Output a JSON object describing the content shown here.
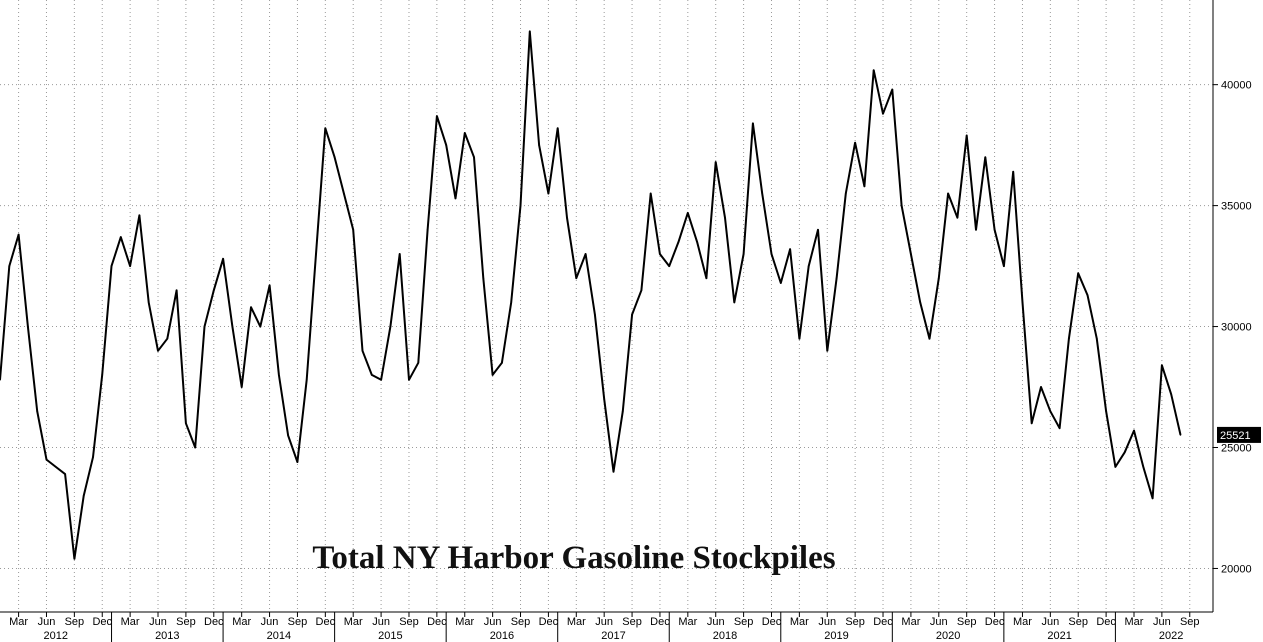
{
  "chart_data": {
    "type": "line",
    "title": "Total NY Harbor Gasoline Stockpiles",
    "xlabel": "",
    "ylabel": "",
    "ylim": [
      18200,
      43500
    ],
    "yticks": [
      20000,
      25000,
      30000,
      35000,
      40000
    ],
    "grid": true,
    "legend": "none",
    "last_value": 25521,
    "last_value_label": "25521",
    "colors": {
      "line": "#000000",
      "grid": "#9a9a9a",
      "last_label_bg": "#000000"
    },
    "x_start": "2012-01",
    "x_end": "2022-10",
    "month_ticks": [
      "Mar",
      "Jun",
      "Sep",
      "Dec"
    ],
    "years": [
      "2012",
      "2013",
      "2014",
      "2015",
      "2016",
      "2017",
      "2018",
      "2019",
      "2020",
      "2021",
      "2022"
    ],
    "series": [
      {
        "values": [
          [
            "2012-01-01",
            27800
          ],
          [
            "2012-02-01",
            32500
          ],
          [
            "2012-03-01",
            33800
          ],
          [
            "2012-04-01",
            30000
          ],
          [
            "2012-05-01",
            26500
          ],
          [
            "2012-06-01",
            24500
          ],
          [
            "2012-07-01",
            24200
          ],
          [
            "2012-08-01",
            23900
          ],
          [
            "2012-09-01",
            20400
          ],
          [
            "2012-10-01",
            23000
          ],
          [
            "2012-11-01",
            24600
          ],
          [
            "2012-12-01",
            28000
          ],
          [
            "2013-01-01",
            32500
          ],
          [
            "2013-02-01",
            33700
          ],
          [
            "2013-03-01",
            32500
          ],
          [
            "2013-04-01",
            34600
          ],
          [
            "2013-05-01",
            31000
          ],
          [
            "2013-06-01",
            29000
          ],
          [
            "2013-07-01",
            29500
          ],
          [
            "2013-08-01",
            31500
          ],
          [
            "2013-09-01",
            26000
          ],
          [
            "2013-10-01",
            25000
          ],
          [
            "2013-11-01",
            30000
          ],
          [
            "2013-12-01",
            31500
          ],
          [
            "2014-01-01",
            32800
          ],
          [
            "2014-02-01",
            30000
          ],
          [
            "2014-03-01",
            27500
          ],
          [
            "2014-04-01",
            30800
          ],
          [
            "2014-05-01",
            30000
          ],
          [
            "2014-06-01",
            31700
          ],
          [
            "2014-07-01",
            28000
          ],
          [
            "2014-08-01",
            25500
          ],
          [
            "2014-09-01",
            24400
          ],
          [
            "2014-10-01",
            27800
          ],
          [
            "2014-11-01",
            33000
          ],
          [
            "2014-12-01",
            38200
          ],
          [
            "2015-01-01",
            37000
          ],
          [
            "2015-02-01",
            35500
          ],
          [
            "2015-03-01",
            34000
          ],
          [
            "2015-04-01",
            29000
          ],
          [
            "2015-05-01",
            28000
          ],
          [
            "2015-06-01",
            27800
          ],
          [
            "2015-07-01",
            30000
          ],
          [
            "2015-08-01",
            33000
          ],
          [
            "2015-09-01",
            27800
          ],
          [
            "2015-10-01",
            28500
          ],
          [
            "2015-11-01",
            34000
          ],
          [
            "2015-12-01",
            38700
          ],
          [
            "2016-01-01",
            37500
          ],
          [
            "2016-02-01",
            35300
          ],
          [
            "2016-03-01",
            38000
          ],
          [
            "2016-04-01",
            37000
          ],
          [
            "2016-05-01",
            32000
          ],
          [
            "2016-06-01",
            28000
          ],
          [
            "2016-07-01",
            28500
          ],
          [
            "2016-08-01",
            31000
          ],
          [
            "2016-09-01",
            35000
          ],
          [
            "2016-10-01",
            42200
          ],
          [
            "2016-11-01",
            37500
          ],
          [
            "2016-12-01",
            35500
          ],
          [
            "2017-01-01",
            38200
          ],
          [
            "2017-02-01",
            34500
          ],
          [
            "2017-03-01",
            32000
          ],
          [
            "2017-04-01",
            33000
          ],
          [
            "2017-05-01",
            30500
          ],
          [
            "2017-06-01",
            27000
          ],
          [
            "2017-07-01",
            24000
          ],
          [
            "2017-08-01",
            26500
          ],
          [
            "2017-09-01",
            30500
          ],
          [
            "2017-10-01",
            31500
          ],
          [
            "2017-11-01",
            35500
          ],
          [
            "2017-12-01",
            33000
          ],
          [
            "2018-01-01",
            32500
          ],
          [
            "2018-02-01",
            33500
          ],
          [
            "2018-03-01",
            34700
          ],
          [
            "2018-04-01",
            33500
          ],
          [
            "2018-05-01",
            32000
          ],
          [
            "2018-06-01",
            36800
          ],
          [
            "2018-07-01",
            34500
          ],
          [
            "2018-08-01",
            31000
          ],
          [
            "2018-09-01",
            33000
          ],
          [
            "2018-10-01",
            38400
          ],
          [
            "2018-11-01",
            35500
          ],
          [
            "2018-12-01",
            33000
          ],
          [
            "2019-01-01",
            31800
          ],
          [
            "2019-02-01",
            33200
          ],
          [
            "2019-03-01",
            29500
          ],
          [
            "2019-04-01",
            32500
          ],
          [
            "2019-05-01",
            34000
          ],
          [
            "2019-06-01",
            29000
          ],
          [
            "2019-07-01",
            32000
          ],
          [
            "2019-08-01",
            35500
          ],
          [
            "2019-09-01",
            37600
          ],
          [
            "2019-10-01",
            35800
          ],
          [
            "2019-11-01",
            40600
          ],
          [
            "2019-12-01",
            38800
          ],
          [
            "2020-01-01",
            39800
          ],
          [
            "2020-02-01",
            35000
          ],
          [
            "2020-03-01",
            33000
          ],
          [
            "2020-04-01",
            31000
          ],
          [
            "2020-05-01",
            29500
          ],
          [
            "2020-06-01",
            32000
          ],
          [
            "2020-07-01",
            35500
          ],
          [
            "2020-08-01",
            34500
          ],
          [
            "2020-09-01",
            37900
          ],
          [
            "2020-10-01",
            34000
          ],
          [
            "2020-11-01",
            37000
          ],
          [
            "2020-12-01",
            34000
          ],
          [
            "2021-01-01",
            32500
          ],
          [
            "2021-02-01",
            36400
          ],
          [
            "2021-03-01",
            31000
          ],
          [
            "2021-04-01",
            26000
          ],
          [
            "2021-05-01",
            27500
          ],
          [
            "2021-06-01",
            26500
          ],
          [
            "2021-07-01",
            25800
          ],
          [
            "2021-08-01",
            29500
          ],
          [
            "2021-09-01",
            32200
          ],
          [
            "2021-10-01",
            31300
          ],
          [
            "2021-11-01",
            29500
          ],
          [
            "2021-12-01",
            26500
          ],
          [
            "2022-01-01",
            24200
          ],
          [
            "2022-02-01",
            24800
          ],
          [
            "2022-03-01",
            25700
          ],
          [
            "2022-04-01",
            24200
          ],
          [
            "2022-05-01",
            22900
          ],
          [
            "2022-06-01",
            28400
          ],
          [
            "2022-07-01",
            27200
          ],
          [
            "2022-08-01",
            25521
          ]
        ]
      }
    ]
  }
}
